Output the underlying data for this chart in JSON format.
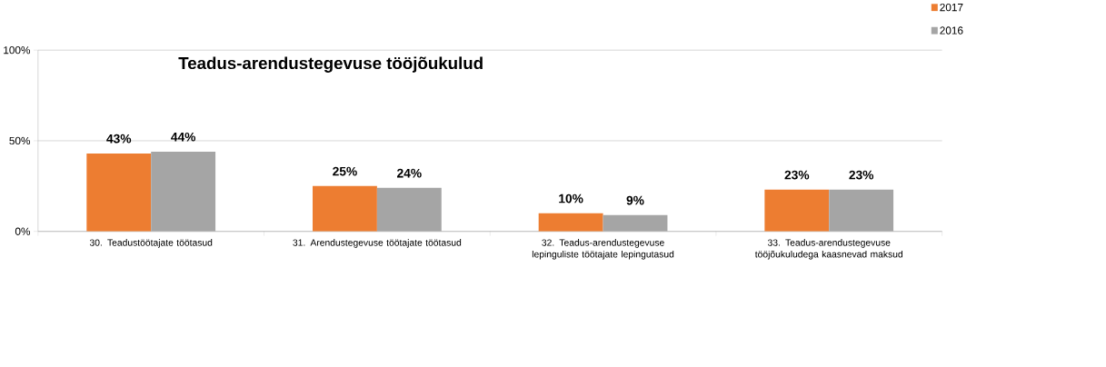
{
  "chart_data": {
    "type": "bar",
    "title": "Teadus-arendustegevuse tööjõukulud",
    "categories": [
      "30. Teadustöötajate töötasud",
      "31. Arendustegevuse töötajate töötasud",
      "32. Teadus-arendustegevuse lepinguliste töötajate lepingutasud",
      "33. Teadus-arendustegevuse tööjõukuludega kaasnevad maksud"
    ],
    "series": [
      {
        "name": "2017",
        "color": "#ed7d31",
        "values": [
          43,
          25,
          10,
          23
        ],
        "value_labels": [
          "43%",
          "25%",
          "10%",
          "23%"
        ]
      },
      {
        "name": "2016",
        "color": "#a5a5a5",
        "values": [
          44,
          24,
          9,
          23
        ],
        "value_labels": [
          "44%",
          "24%",
          "9%",
          "23%"
        ]
      }
    ],
    "ylim": [
      0,
      100
    ],
    "yticks": [
      {
        "value": 0,
        "label": "0%"
      },
      {
        "value": 50,
        "label": "50%"
      },
      {
        "value": 100,
        "label": "100%"
      }
    ],
    "grid": "y",
    "legend": "top right"
  }
}
